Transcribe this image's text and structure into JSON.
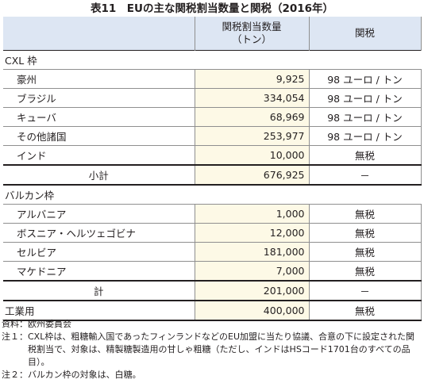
{
  "title": "表11　EUの主な関税割当数量と関税（2016年）",
  "header": {
    "col0": "",
    "col1_line1": "関税割当数量",
    "col1_line2": "（トン）",
    "col2": "関税"
  },
  "cxl": {
    "label": "CXL 枠",
    "rows": [
      {
        "name": "豪州",
        "qty": "9,925",
        "tariff": "98 ユーロ / トン"
      },
      {
        "name": "ブラジル",
        "qty": "334,054",
        "tariff": "98 ユーロ / トン"
      },
      {
        "name": "キューバ",
        "qty": "68,969",
        "tariff": "98 ユーロ / トン"
      },
      {
        "name": "その他諸国",
        "qty": "253,977",
        "tariff": "98 ユーロ / トン"
      },
      {
        "name": "インド",
        "qty": "10,000",
        "tariff": "無税"
      }
    ],
    "subtotal": {
      "name": "小計",
      "qty": "676,925",
      "tariff": "－"
    }
  },
  "balkan": {
    "label": "バルカン枠",
    "rows": [
      {
        "name": "アルバニア",
        "qty": "1,000",
        "tariff": "無税"
      },
      {
        "name": "ボスニア・ヘルツェゴビナ",
        "qty": "12,000",
        "tariff": "無税"
      },
      {
        "name": "セルビア",
        "qty": "181,000",
        "tariff": "無税"
      },
      {
        "name": "マケドニア",
        "qty": "7,000",
        "tariff": "無税"
      }
    ],
    "subtotal": {
      "name": "計",
      "qty": "201,000",
      "tariff": "－"
    }
  },
  "industrial": {
    "name": "工業用",
    "qty": "400,000",
    "tariff": "無税"
  },
  "notes": [
    {
      "label": "資料：",
      "text": "欧州委員会"
    },
    {
      "label": "注１：",
      "text": "CXL枠は、粗糖輸入国であったフィンランドなどのEU加盟に当たり協議、合意の下に設定された関税割当で、対象は、精製糖製造用の甘しゃ粗糖（ただし、インドはHSコード1701台のすべての品目）。"
    },
    {
      "label": "注２：",
      "text": "バルカン枠の対象は、白糖。"
    }
  ]
}
